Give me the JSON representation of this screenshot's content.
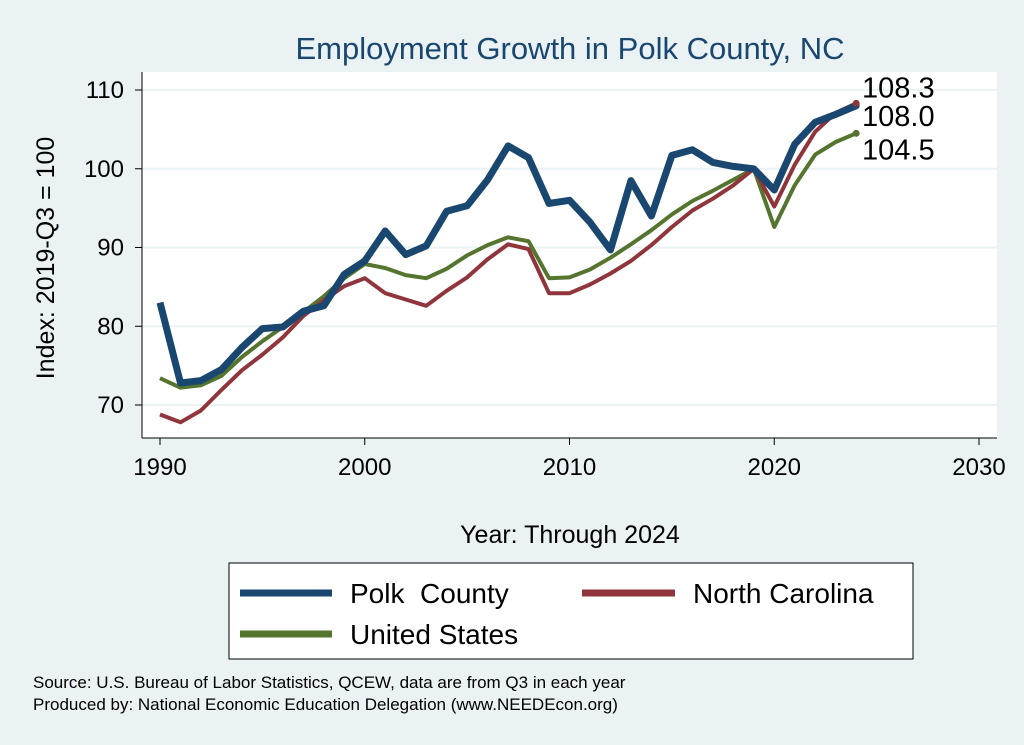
{
  "chart_data": {
    "type": "line",
    "title": "Employment Growth in Polk County, NC",
    "xlabel": "Year: Through 2024",
    "ylabel": "Index: 2019-Q3 = 100",
    "xlim": [
      1990,
      2030
    ],
    "ylim": [
      65,
      112
    ],
    "xticks": [
      "1990",
      "2000",
      "2010",
      "2020",
      "2030"
    ],
    "yticks": [
      "70",
      "80",
      "90",
      "100",
      "110"
    ],
    "grid": true,
    "legend_position": "bottom",
    "x": [
      1990,
      1991,
      1992,
      1993,
      1994,
      1995,
      1996,
      1997,
      1998,
      1999,
      2000,
      2001,
      2002,
      2003,
      2004,
      2005,
      2006,
      2007,
      2008,
      2009,
      2010,
      2011,
      2012,
      2013,
      2014,
      2015,
      2016,
      2017,
      2018,
      2019,
      2020,
      2021,
      2022,
      2023,
      2024
    ],
    "series": [
      {
        "name": "Polk  County",
        "color": "#1a476f",
        "end_label": "108.0",
        "values": [
          83.0,
          72.8,
          73.1,
          74.5,
          77.3,
          79.7,
          79.9,
          81.9,
          82.6,
          86.6,
          88.3,
          92.1,
          89.1,
          90.2,
          94.6,
          95.3,
          98.6,
          102.9,
          101.4,
          95.6,
          96.0,
          93.2,
          89.7,
          98.5,
          94.0,
          101.7,
          102.4,
          100.8,
          100.3,
          100.0,
          97.3,
          103.1,
          105.9,
          106.9,
          108.0
        ]
      },
      {
        "name": "North Carolina",
        "color": "#90353b",
        "end_label": "108.3",
        "values": [
          68.8,
          67.8,
          69.3,
          71.9,
          74.4,
          76.4,
          78.6,
          81.3,
          83.3,
          85.1,
          86.1,
          84.2,
          83.4,
          82.6,
          84.5,
          86.2,
          88.5,
          90.4,
          89.8,
          84.2,
          84.2,
          85.3,
          86.7,
          88.3,
          90.3,
          92.6,
          94.7,
          96.2,
          97.9,
          100.0,
          95.2,
          100.5,
          104.7,
          107.1,
          108.3
        ]
      },
      {
        "name": "United States",
        "color": "#55752f",
        "end_label": "104.5",
        "values": [
          73.4,
          72.2,
          72.5,
          73.7,
          76.1,
          78.1,
          79.9,
          81.8,
          83.8,
          86.1,
          87.9,
          87.4,
          86.5,
          86.1,
          87.3,
          89.0,
          90.3,
          91.3,
          90.8,
          86.1,
          86.2,
          87.2,
          88.7,
          90.4,
          92.2,
          94.2,
          95.9,
          97.2,
          98.6,
          100.0,
          92.6,
          97.9,
          101.8,
          103.4,
          104.5
        ]
      }
    ],
    "notes": [
      "Source: U.S. Bureau of Labor Statistics, QCEW, data are from Q3 in each year",
      "Produced by: National Economic Education Delegation (www.NEEDEcon.org)"
    ]
  }
}
